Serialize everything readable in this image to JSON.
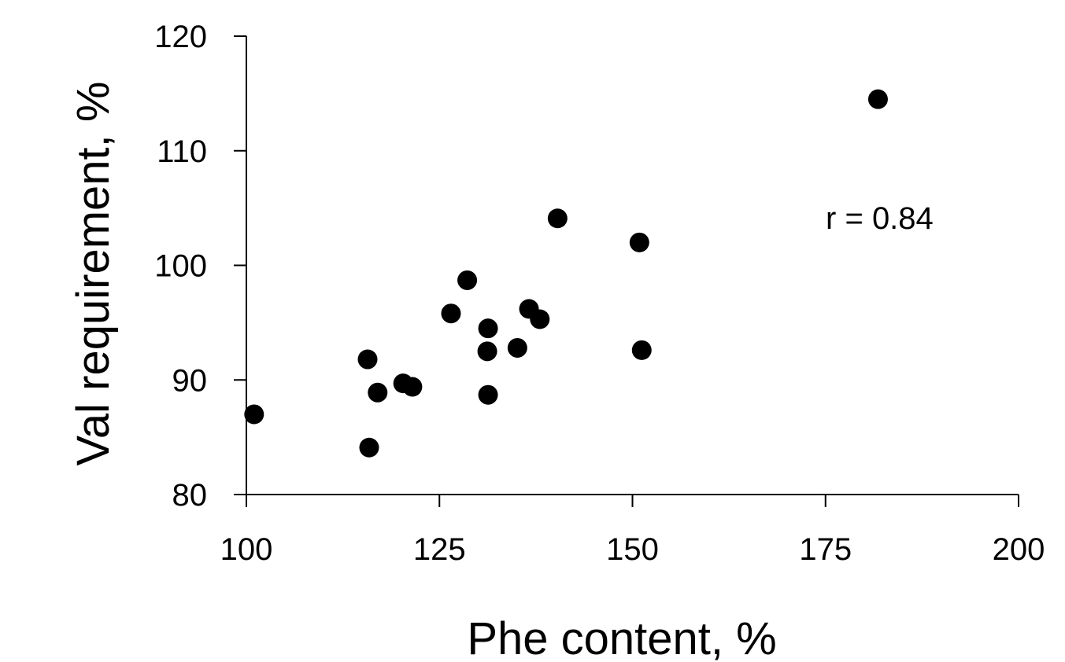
{
  "chart_data": {
    "type": "scatter",
    "title": "",
    "xlabel": "Phe content, %",
    "ylabel": "Val requirement, %",
    "xlim": [
      100,
      200
    ],
    "ylim": [
      80,
      120
    ],
    "xticks": [
      100,
      125,
      150,
      175,
      200
    ],
    "yticks": [
      80,
      90,
      100,
      110,
      120
    ],
    "xtick_labels": [
      "100",
      "125",
      "150",
      "175",
      "200"
    ],
    "ytick_labels": [
      "80",
      "90",
      "100",
      "110",
      "120"
    ],
    "grid": false,
    "legend": "none",
    "annotation": "r = 0.84",
    "annotation_pos": {
      "x": 182,
      "y": 103.2
    },
    "marker_color": "#000000",
    "points": [
      {
        "x": 101.0,
        "y": 87.0
      },
      {
        "x": 115.7,
        "y": 91.8
      },
      {
        "x": 115.9,
        "y": 84.1
      },
      {
        "x": 117.0,
        "y": 88.9
      },
      {
        "x": 120.3,
        "y": 89.7
      },
      {
        "x": 121.5,
        "y": 89.4
      },
      {
        "x": 126.5,
        "y": 95.8
      },
      {
        "x": 128.6,
        "y": 98.7
      },
      {
        "x": 131.3,
        "y": 94.5
      },
      {
        "x": 131.2,
        "y": 92.5
      },
      {
        "x": 131.3,
        "y": 88.7
      },
      {
        "x": 135.1,
        "y": 92.8
      },
      {
        "x": 136.6,
        "y": 96.2
      },
      {
        "x": 138.0,
        "y": 95.3
      },
      {
        "x": 140.3,
        "y": 104.1
      },
      {
        "x": 150.9,
        "y": 102.0
      },
      {
        "x": 151.2,
        "y": 92.6
      },
      {
        "x": 181.8,
        "y": 114.5
      }
    ]
  }
}
